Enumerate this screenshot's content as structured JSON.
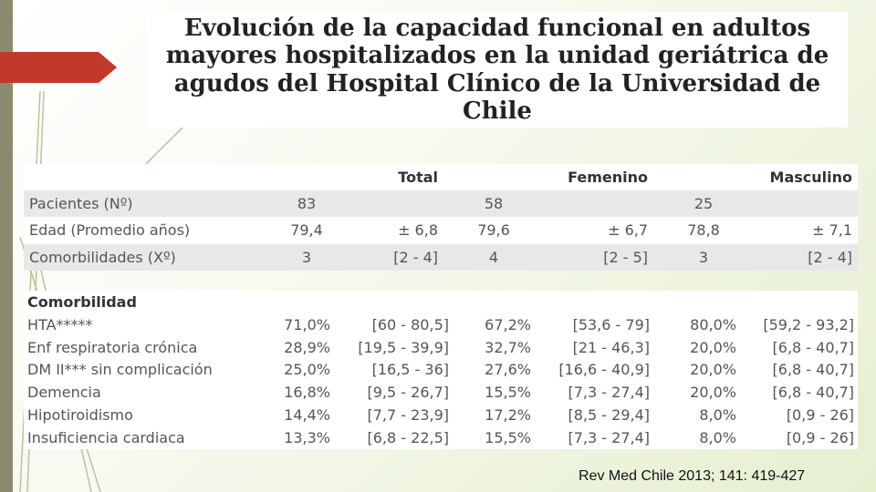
{
  "title": "Evolución de la capacidad funcional en adultos mayores hospitalizados en la unidad geriátrica de agudos del Hospital Clínico de la Universidad de Chile",
  "summary_table": {
    "headers": [
      "",
      "Total",
      "Femenino",
      "Masculino"
    ],
    "rows": [
      {
        "label": "Pacientes (Nº)",
        "total": "83",
        "total_sd": "",
        "fem": "58",
        "fem_sd": "",
        "masc": "25",
        "masc_sd": ""
      },
      {
        "label": "Edad (Promedio años)",
        "total": "79,4",
        "total_sd": "± 6,8",
        "fem": "79,6",
        "fem_sd": "± 6,7",
        "masc": "78,8",
        "masc_sd": "± 7,1"
      },
      {
        "label": "Comorbilidades (Xº)",
        "total": "3",
        "total_sd": "[2 - 4]",
        "fem": "4",
        "fem_sd": "[2 - 5]",
        "masc": "3",
        "masc_sd": "[2 - 4]"
      }
    ]
  },
  "comorbidity_table": {
    "section": "Comorbilidad",
    "rows": [
      {
        "label": "HTA*****",
        "total": "71,0%",
        "total_ci": "[60 - 80,5]",
        "fem": "67,2%",
        "fem_ci": "[53,6 - 79]",
        "masc": "80,0%",
        "masc_ci": "[59,2 - 93,2]"
      },
      {
        "label": "Enf respiratoria crónica",
        "total": "28,9%",
        "total_ci": "[19,5 - 39,9]",
        "fem": "32,7%",
        "fem_ci": "[21 - 46,3]",
        "masc": "20,0%",
        "masc_ci": "[6,8 - 40,7]"
      },
      {
        "label": "DM II*** sin complicación",
        "total": "25,0%",
        "total_ci": "[16,5 - 36]",
        "fem": "27,6%",
        "fem_ci": "[16,6 - 40,9]",
        "masc": "20,0%",
        "masc_ci": "[6,8 - 40,7]"
      },
      {
        "label": "Demencia",
        "total": "16,8%",
        "total_ci": "[9,5 - 26,7]",
        "fem": "15,5%",
        "fem_ci": "[7,3 - 27,4]",
        "masc": "20,0%",
        "masc_ci": "[6,8 - 40,7]"
      },
      {
        "label": "Hipotiroidismo",
        "total": "14,4%",
        "total_ci": "[7,7 - 23,9]",
        "fem": "17,2%",
        "fem_ci": "[8,5 - 29,4]",
        "masc": "8,0%",
        "masc_ci": "[0,9 - 26]"
      },
      {
        "label": "Insuficiencia cardiaca",
        "total": "13,3%",
        "total_ci": "[6,8 - 22,5]",
        "fem": "15,5%",
        "fem_ci": "[7,3 - 27,4]",
        "masc": "8,0%",
        "masc_ci": "[0,9 - 26]"
      }
    ]
  },
  "citation": "Rev Med Chile 2013; 141: 419-427",
  "colors": {
    "accent_arrow": "#c0392b",
    "sidebar": "#8a8a70",
    "row_stripe": "#e8e8e8"
  }
}
